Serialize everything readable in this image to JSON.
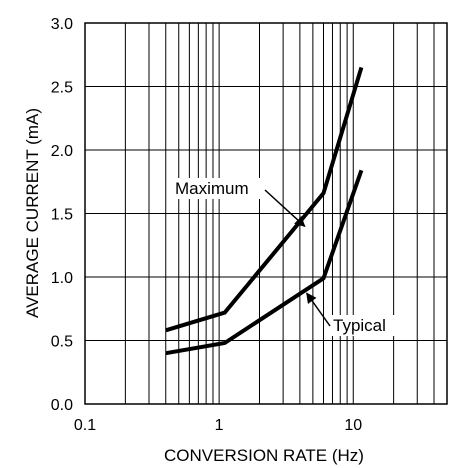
{
  "chart_data": {
    "type": "line",
    "xlabel": "CONVERSION RATE (Hz)",
    "ylabel": "AVERAGE CURRENT (mA)",
    "xscale": "log",
    "xlim": [
      0.1,
      50
    ],
    "ylim": [
      0,
      3.0
    ],
    "x_ticks": [
      {
        "value": 0.1,
        "label": "0.1"
      },
      {
        "value": 1,
        "label": "1"
      },
      {
        "value": 10,
        "label": "10"
      }
    ],
    "y_ticks": [
      {
        "value": 0.0,
        "label": "0.0"
      },
      {
        "value": 0.5,
        "label": "0.5"
      },
      {
        "value": 1.0,
        "label": "1.0"
      },
      {
        "value": 1.5,
        "label": "1.5"
      },
      {
        "value": 2.0,
        "label": "2.0"
      },
      {
        "value": 2.5,
        "label": "2.5"
      },
      {
        "value": 3.0,
        "label": "3.0"
      }
    ],
    "grid": true,
    "series": [
      {
        "name": "Maximum",
        "points": [
          {
            "x": 0.4,
            "y": 0.58
          },
          {
            "x": 1.1,
            "y": 0.72
          },
          {
            "x": 6.0,
            "y": 1.66
          },
          {
            "x": 11.5,
            "y": 2.65
          }
        ]
      },
      {
        "name": "Typical",
        "points": [
          {
            "x": 0.4,
            "y": 0.4
          },
          {
            "x": 1.1,
            "y": 0.48
          },
          {
            "x": 6.0,
            "y": 0.99
          },
          {
            "x": 11.5,
            "y": 1.84
          }
        ]
      }
    ],
    "annotations": [
      {
        "text": "Maximum",
        "series": "Maximum",
        "at_x": 4.2
      },
      {
        "text": "Typical",
        "series": "Typical",
        "at_x": 4.5
      }
    ]
  }
}
